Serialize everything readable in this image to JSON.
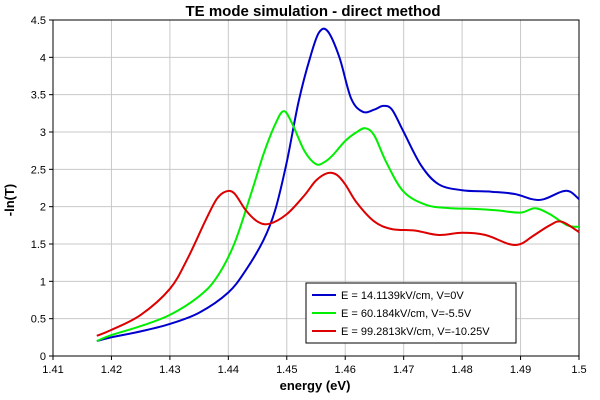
{
  "chart_data": {
    "type": "line",
    "title": "TE mode simulation - direct method",
    "xlabel": "energy (eV)",
    "ylabel": "-ln(T)",
    "xlim": [
      1.41,
      1.5
    ],
    "ylim": [
      0,
      4.5
    ],
    "xticks": [
      "1.41",
      "1.42",
      "1.43",
      "1.44",
      "1.45",
      "1.46",
      "1.47",
      "1.48",
      "1.49",
      "1.5"
    ],
    "yticks": [
      "0",
      "0.5",
      "1",
      "1.5",
      "2",
      "2.5",
      "3",
      "3.5",
      "4",
      "4.5"
    ],
    "grid": true,
    "legend_position": "bottom-right",
    "series": [
      {
        "name": "E = 14.1139kV/cm, V=0V",
        "color": "#0000cc",
        "x": [
          1.4175,
          1.42,
          1.425,
          1.43,
          1.435,
          1.44,
          1.443,
          1.446,
          1.448,
          1.45,
          1.452,
          1.454,
          1.4555,
          1.457,
          1.459,
          1.461,
          1.463,
          1.465,
          1.4665,
          1.468,
          1.47,
          1.473,
          1.476,
          1.48,
          1.485,
          1.489,
          1.492,
          1.494,
          1.497,
          1.4985,
          1.5
        ],
        "y": [
          0.2,
          0.25,
          0.33,
          0.43,
          0.58,
          0.85,
          1.15,
          1.55,
          1.95,
          2.6,
          3.4,
          4.0,
          4.33,
          4.35,
          4.0,
          3.45,
          3.27,
          3.3,
          3.35,
          3.3,
          3.0,
          2.55,
          2.3,
          2.22,
          2.2,
          2.17,
          2.1,
          2.1,
          2.2,
          2.2,
          2.1
        ]
      },
      {
        "name": "E = 60.184kV/cm, V=-5.5V",
        "color": "#00ee00",
        "x": [
          1.4175,
          1.42,
          1.425,
          1.43,
          1.435,
          1.438,
          1.441,
          1.444,
          1.446,
          1.448,
          1.4495,
          1.451,
          1.453,
          1.455,
          1.4565,
          1.458,
          1.46,
          1.462,
          1.4635,
          1.465,
          1.467,
          1.47,
          1.474,
          1.478,
          1.482,
          1.486,
          1.49,
          1.4925,
          1.495,
          1.498,
          1.5
        ],
        "y": [
          0.2,
          0.28,
          0.4,
          0.55,
          0.8,
          1.05,
          1.5,
          2.2,
          2.7,
          3.1,
          3.28,
          3.1,
          2.75,
          2.57,
          2.6,
          2.7,
          2.88,
          3.0,
          3.05,
          2.95,
          2.6,
          2.2,
          2.02,
          1.98,
          1.97,
          1.95,
          1.92,
          1.98,
          1.9,
          1.75,
          1.73
        ]
      },
      {
        "name": "E = 99.2813kV/cm, V=-10.25V",
        "color": "#dd0000",
        "x": [
          1.4175,
          1.42,
          1.425,
          1.43,
          1.433,
          1.436,
          1.438,
          1.4395,
          1.441,
          1.443,
          1.445,
          1.447,
          1.45,
          1.453,
          1.455,
          1.457,
          1.4585,
          1.46,
          1.462,
          1.465,
          1.468,
          1.472,
          1.476,
          1.48,
          1.484,
          1.488,
          1.49,
          1.492,
          1.495,
          1.497,
          1.5
        ],
        "y": [
          0.27,
          0.35,
          0.55,
          0.9,
          1.3,
          1.8,
          2.1,
          2.2,
          2.18,
          1.95,
          1.8,
          1.77,
          1.9,
          2.15,
          2.35,
          2.45,
          2.43,
          2.3,
          2.05,
          1.8,
          1.7,
          1.68,
          1.62,
          1.65,
          1.62,
          1.5,
          1.5,
          1.6,
          1.75,
          1.8,
          1.66
        ]
      }
    ]
  }
}
